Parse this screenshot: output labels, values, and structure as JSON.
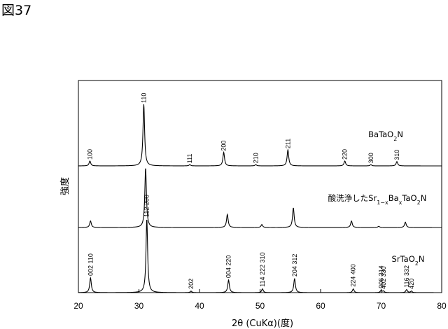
{
  "figure_label": "図37",
  "chart_data": {
    "type": "line",
    "xlabel": "2θ (CuKα)(度)",
    "ylabel": "強度",
    "xlim": [
      20,
      80
    ],
    "xticks": [
      20,
      30,
      40,
      50,
      60,
      70,
      80
    ],
    "grid": false,
    "series": [
      {
        "name": "BaTaO2N",
        "peaks": [
          {
            "x": 21.9,
            "h": 0.08,
            "label": "100"
          },
          {
            "x": 30.8,
            "h": 1.0,
            "label": "110"
          },
          {
            "x": 38.4,
            "h": 0.02,
            "label": "111"
          },
          {
            "x": 44.0,
            "h": 0.22,
            "label": "200"
          },
          {
            "x": 49.3,
            "h": 0.02,
            "label": "210"
          },
          {
            "x": 54.6,
            "h": 0.26,
            "label": "211"
          },
          {
            "x": 64.0,
            "h": 0.08,
            "label": "220"
          },
          {
            "x": 68.3,
            "h": 0.02,
            "label": "300"
          },
          {
            "x": 72.6,
            "h": 0.07,
            "label": "310"
          }
        ]
      },
      {
        "name": "酸洗浄したSr1−xBaxTaO2N",
        "peaks": [
          {
            "x": 22.0,
            "h": 0.11,
            "label": ""
          },
          {
            "x": 31.1,
            "h": 1.0,
            "label": ""
          },
          {
            "x": 44.6,
            "h": 0.22,
            "label": ""
          },
          {
            "x": 50.3,
            "h": 0.05,
            "label": ""
          },
          {
            "x": 55.5,
            "h": 0.33,
            "label": ""
          },
          {
            "x": 65.1,
            "h": 0.11,
            "label": ""
          },
          {
            "x": 69.6,
            "h": 0.02,
            "label": ""
          },
          {
            "x": 74.0,
            "h": 0.09,
            "label": ""
          }
        ]
      },
      {
        "name": "SrTaO2N",
        "peaks": [
          {
            "x": 22.0,
            "h": 0.2,
            "label": "002 110"
          },
          {
            "x": 31.3,
            "h": 1.0,
            "label": "112 200"
          },
          {
            "x": 38.6,
            "h": 0.02,
            "label": "202"
          },
          {
            "x": 44.8,
            "h": 0.17,
            "label": "004 220"
          },
          {
            "x": 50.4,
            "h": 0.05,
            "label": "114 222 310"
          },
          {
            "x": 55.7,
            "h": 0.19,
            "label": "204 312"
          },
          {
            "x": 65.4,
            "h": 0.05,
            "label": "224 400"
          },
          {
            "x": 70.0,
            "h": 0.03,
            "label": "006 314"
          },
          {
            "x": 70.4,
            "h": 0.02,
            "label": "402 330"
          },
          {
            "x": 74.2,
            "h": 0.04,
            "label": "116 332"
          },
          {
            "x": 75.0,
            "h": 0.02,
            "label": "420"
          }
        ]
      }
    ]
  }
}
